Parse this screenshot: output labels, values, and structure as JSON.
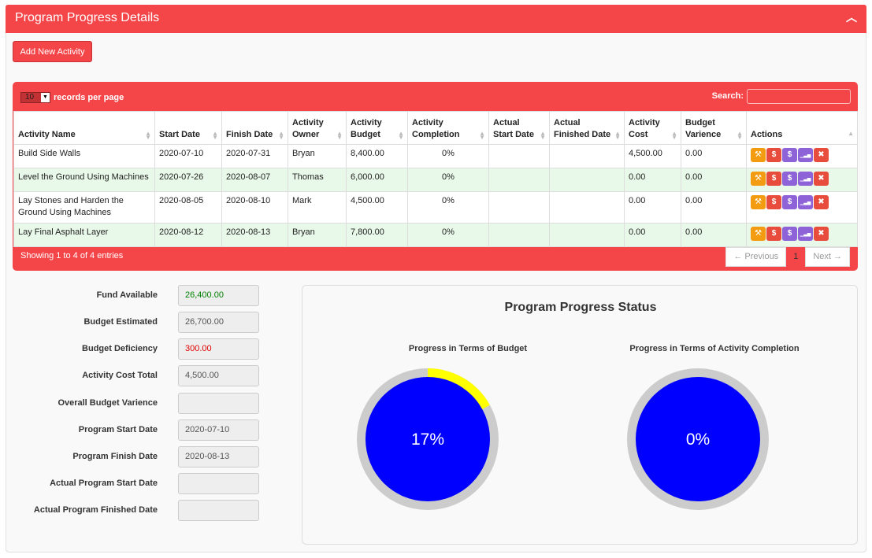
{
  "panel": {
    "title": "Program Progress Details",
    "collapse_icon": "chevron-up-icon"
  },
  "buttons": {
    "add_activity": "Add New Activity"
  },
  "table": {
    "length_value": "10",
    "length_label": "records per page",
    "search_label": "Search:",
    "search_value": "",
    "columns": [
      "Activity Name",
      "Start Date",
      "Finish Date",
      "Activity Owner",
      "Activity Budget",
      "Activity Completion",
      "Actual Start Date",
      "Actual Finished Date",
      "Activity Cost",
      "Budget Varience",
      "Actions"
    ],
    "rows": [
      {
        "name": "Build Side Walls",
        "start": "2020-07-10",
        "finish": "2020-07-31",
        "owner": "Bryan",
        "budget": "8,400.00",
        "completion": "0%",
        "actual_start": "",
        "actual_finish": "",
        "cost": "4,500.00",
        "varience": "0.00"
      },
      {
        "name": "Level the Ground Using Machines",
        "start": "2020-07-26",
        "finish": "2020-08-07",
        "owner": "Thomas",
        "budget": "6,000.00",
        "completion": "0%",
        "actual_start": "",
        "actual_finish": "",
        "cost": "0.00",
        "varience": "0.00"
      },
      {
        "name": "Lay Stones and Harden the Ground Using Machines",
        "start": "2020-08-05",
        "finish": "2020-08-10",
        "owner": "Mark",
        "budget": "4,500.00",
        "completion": "0%",
        "actual_start": "",
        "actual_finish": "",
        "cost": "0.00",
        "varience": "0.00"
      },
      {
        "name": "Lay Final Asphalt Layer",
        "start": "2020-08-12",
        "finish": "2020-08-13",
        "owner": "Bryan",
        "budget": "7,800.00",
        "completion": "0%",
        "actual_start": "",
        "actual_finish": "",
        "cost": "0.00",
        "varience": "0.00"
      }
    ],
    "action_icons": [
      "wrench-icon",
      "dollar-icon",
      "dollar-icon",
      "signal-bars-icon",
      "close-icon"
    ],
    "info": "Showing 1 to 4 of 4 entries",
    "pager": {
      "previous": "← Previous",
      "current": "1",
      "next": "Next →"
    }
  },
  "summary": {
    "fund_available": {
      "label": "Fund Available",
      "value": "26,400.00"
    },
    "budget_estimated": {
      "label": "Budget Estimated",
      "value": "26,700.00"
    },
    "budget_deficiency": {
      "label": "Budget Deficiency",
      "value": "300.00"
    },
    "activity_cost_total": {
      "label": "Activity Cost Total",
      "value": "4,500.00"
    },
    "overall_budget_varience": {
      "label": "Overall Budget Varience",
      "value": ""
    },
    "program_start": {
      "label": "Program Start Date",
      "value": "2020-07-10"
    },
    "program_finish": {
      "label": "Program Finish Date",
      "value": "2020-08-13"
    },
    "actual_start": {
      "label": "Actual Program Start Date",
      "value": ""
    },
    "actual_finish": {
      "label": "Actual Program Finished Date",
      "value": ""
    }
  },
  "status": {
    "title": "Program Progress Status",
    "budget_chart": {
      "title": "Progress in Terms of Budget",
      "label": "17%",
      "fraction": 0.17
    },
    "completion_chart": {
      "title": "Progress in Terms of Activity Completion",
      "label": "0%",
      "fraction": 0
    }
  },
  "colors": {
    "accent": "#f44649",
    "gauge_fill": "#0000ff",
    "gauge_track": "#cccccc",
    "gauge_progress": "#ffff00"
  }
}
